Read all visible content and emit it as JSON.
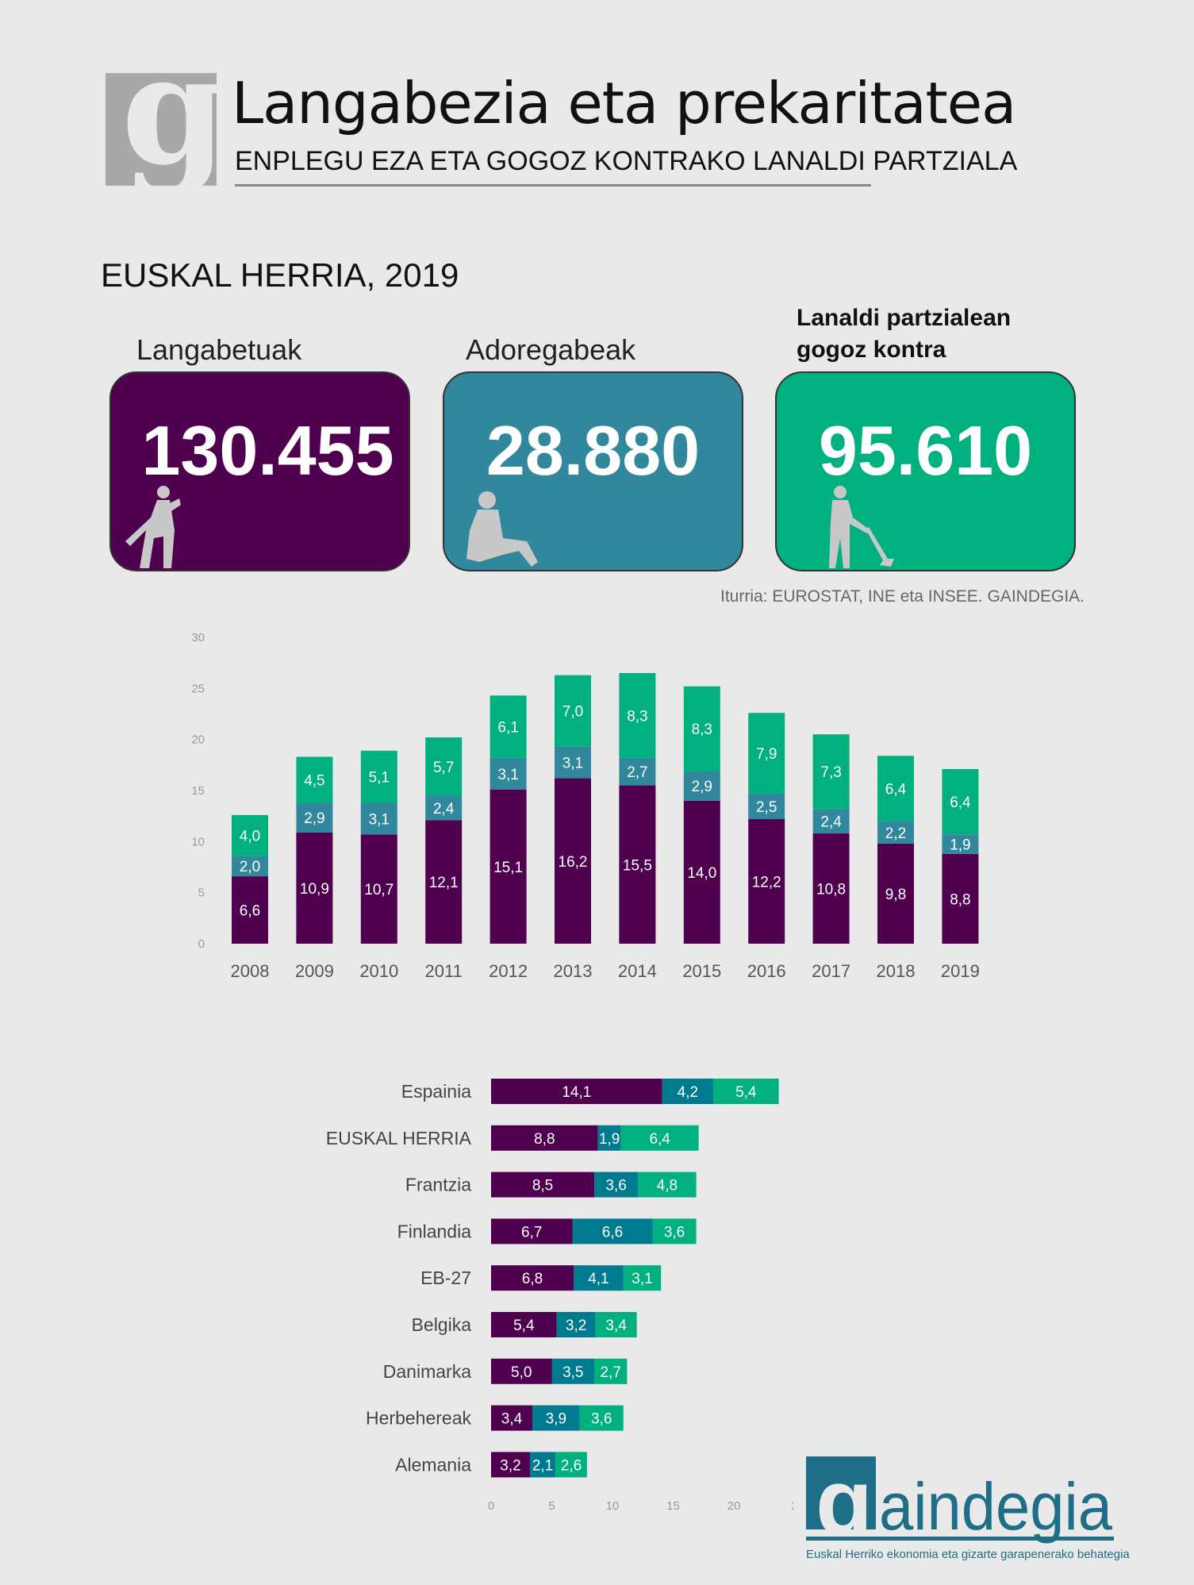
{
  "header": {
    "logo_letter": "g",
    "title": "Langabezia eta prekaritatea",
    "subtitle": "ENPLEGU EZA ETA GOGOZ KONTRAKO LANALDI PARTZIALA"
  },
  "region": "EUSKAL HERRIA, 2019",
  "kpis": [
    {
      "label": "Langabetuak",
      "value": "130.455",
      "color": "#4f004f",
      "icon": "sad-person-icon"
    },
    {
      "label": "Adoregabeak",
      "value": "28.880",
      "color": "#31879c",
      "icon": "sitting-person-icon"
    },
    {
      "label_line1": "Lanaldi partzialean",
      "label_line2": "gogoz kontra",
      "value": "95.610",
      "color": "#00b07e",
      "icon": "worker-shovel-icon"
    }
  ],
  "source": "Iturria: EUROSTAT, INE eta INSEE. GAINDEGIA.",
  "colors": {
    "unemployed": "#4f004f",
    "discouraged": "#31879c",
    "discouraged_h": "#007a8f",
    "parttime": "#00b07e",
    "background": "#e9e9e9"
  },
  "chart_data": [
    {
      "type": "bar",
      "stacked": true,
      "orientation": "vertical",
      "categories": [
        "2008",
        "2009",
        "2010",
        "2011",
        "2012",
        "2013",
        "2014",
        "2015",
        "2016",
        "2017",
        "2018",
        "2019"
      ],
      "series": [
        {
          "values": [
            6.6,
            10.9,
            10.7,
            12.1,
            15.1,
            16.2,
            15.5,
            14.0,
            12.2,
            10.8,
            9.8,
            8.8
          ],
          "labels": [
            "6,6",
            "10,9",
            "10,7",
            "12,1",
            "15,1",
            "16,2",
            "15,5",
            "14,0",
            "12,2",
            "10,8",
            "9,8",
            "8,8"
          ]
        },
        {
          "values": [
            2.0,
            2.9,
            3.1,
            2.4,
            3.1,
            3.1,
            2.7,
            2.9,
            2.5,
            2.4,
            2.2,
            1.9
          ],
          "labels": [
            "2,0",
            "2,9",
            "3,1",
            "2,4",
            "3,1",
            "3,1",
            "2,7",
            "2,9",
            "2,5",
            "2,4",
            "2,2",
            "1,9"
          ]
        },
        {
          "values": [
            4.0,
            4.5,
            5.1,
            5.7,
            6.1,
            7.0,
            8.3,
            8.3,
            7.9,
            7.3,
            6.4,
            6.4
          ],
          "labels": [
            "4,0",
            "4,5",
            "5,1",
            "5,7",
            "6,1",
            "7,0",
            "8,3",
            "8,3",
            "7,9",
            "7,3",
            "6,4",
            "6,4"
          ]
        }
      ],
      "ylim": [
        0,
        30
      ],
      "yticks": [
        "0",
        "5",
        "10",
        "15",
        "20",
        "25",
        "30"
      ],
      "grid": false
    },
    {
      "type": "bar",
      "stacked": true,
      "orientation": "horizontal",
      "categories": [
        "Espainia",
        "EUSKAL HERRIA",
        "Frantzia",
        "Finlandia",
        "EB-27",
        "Belgika",
        "Danimarka",
        "Herbehereak",
        "Alemania"
      ],
      "series": [
        {
          "values": [
            14.1,
            8.8,
            8.5,
            6.7,
            6.8,
            5.4,
            5.0,
            3.4,
            3.2
          ],
          "labels": [
            "14,1",
            "8,8",
            "8,5",
            "6,7",
            "6,8",
            "5,4",
            "5,0",
            "3,4",
            "3,2"
          ]
        },
        {
          "values": [
            4.2,
            1.9,
            3.6,
            6.6,
            4.1,
            3.2,
            3.5,
            3.9,
            2.1
          ],
          "labels": [
            "4,2",
            "1,9",
            "3,6",
            "6,6",
            "4,1",
            "3,2",
            "3,5",
            "3,9",
            "2,1"
          ]
        },
        {
          "values": [
            5.4,
            6.4,
            4.8,
            3.6,
            3.1,
            3.4,
            2.7,
            3.6,
            2.6
          ],
          "labels": [
            "5,4",
            "6,4",
            "4,8",
            "3,6",
            "3,1",
            "3,4",
            "2,7",
            "3,6",
            "2,6"
          ]
        }
      ],
      "xlim": [
        0,
        25
      ],
      "xticks": [
        "0",
        "5",
        "10",
        "15",
        "20",
        "2"
      ],
      "grid": false
    }
  ],
  "footer": {
    "logo_text": "gaindegia",
    "logo_tagline": "Euskal Herriko ekonomia eta gizarte garapenerako behategia"
  }
}
